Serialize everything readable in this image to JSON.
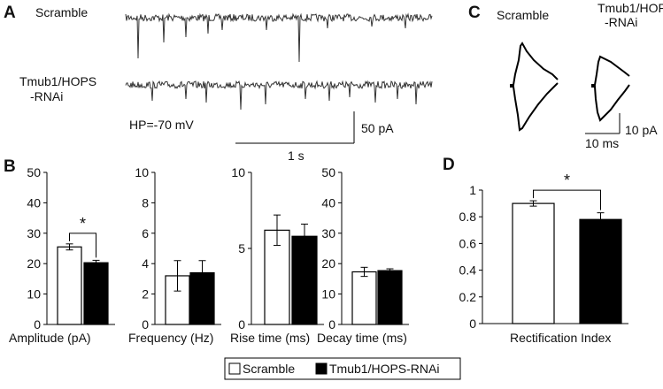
{
  "panels": {
    "A": {
      "letter": "A",
      "trace_labels": [
        "Scramble",
        "Tmub1/HOPS",
        "-RNAi"
      ],
      "holding_potential": "HP=-70 mV",
      "scale_y": "50 pA",
      "scale_x": "1 s"
    },
    "B": {
      "letter": "B"
    },
    "C": {
      "letter": "C",
      "label_scramble": "Scramble",
      "label_rnai": [
        "Tmub1/HOPS",
        "-RNAi"
      ],
      "scale_x": "10 ms",
      "scale_y": "10 pA"
    },
    "D": {
      "letter": "D"
    }
  },
  "legend": {
    "items": [
      {
        "label": "Scramble",
        "color": "#ffffff"
      },
      {
        "label": "Tmub1/HOPS-RNAi",
        "color": "#000000"
      }
    ]
  },
  "chart_data": [
    {
      "type": "bar",
      "panel": "B",
      "xlabel": "Amplitude (pA)",
      "ylim": [
        0,
        50
      ],
      "yticks": [
        "0",
        "10",
        "20",
        "30",
        "40",
        "50"
      ],
      "series": [
        {
          "name": "Scramble",
          "values": [
            25.5
          ],
          "error": [
            1.0
          ]
        },
        {
          "name": "Tmub1/HOPS-RNAi",
          "values": [
            20.3
          ],
          "error": [
            0.8
          ]
        }
      ],
      "significance": "*"
    },
    {
      "type": "bar",
      "panel": "B",
      "xlabel": "Frequency (Hz)",
      "ylim": [
        0,
        10
      ],
      "yticks": [
        "0",
        "2",
        "4",
        "6",
        "8",
        "10"
      ],
      "series": [
        {
          "name": "Scramble",
          "values": [
            3.2
          ],
          "error": [
            1.0
          ]
        },
        {
          "name": "Tmub1/HOPS-RNAi",
          "values": [
            3.4
          ],
          "error": [
            0.8
          ]
        }
      ]
    },
    {
      "type": "bar",
      "panel": "B",
      "xlabel": "Rise time (ms)",
      "ylim": [
        0,
        10
      ],
      "yticks": [
        "0",
        "5",
        "10"
      ],
      "series": [
        {
          "name": "Scramble",
          "values": [
            6.2
          ],
          "error": [
            1.0
          ]
        },
        {
          "name": "Tmub1/HOPS-RNAi",
          "values": [
            5.8
          ],
          "error": [
            0.8
          ]
        }
      ]
    },
    {
      "type": "bar",
      "panel": "B",
      "xlabel": "Decay time (ms)",
      "ylim": [
        0,
        50
      ],
      "yticks": [
        "0",
        "10",
        "20",
        "30",
        "40",
        "50"
      ],
      "series": [
        {
          "name": "Scramble",
          "values": [
            17.3
          ],
          "error": [
            1.5
          ]
        },
        {
          "name": "Tmub1/HOPS-RNAi",
          "values": [
            17.7
          ],
          "error": [
            0.6
          ]
        }
      ]
    },
    {
      "type": "bar",
      "panel": "D",
      "xlabel": "Rectification Index",
      "ylim": [
        0,
        1
      ],
      "yticks": [
        "0",
        "0.2",
        "0.4",
        "0.6",
        "0.8",
        "1"
      ],
      "series": [
        {
          "name": "Scramble",
          "values": [
            0.9
          ],
          "error": [
            0.02
          ]
        },
        {
          "name": "Tmub1/HOPS-RNAi",
          "values": [
            0.78
          ],
          "error": [
            0.05
          ]
        }
      ],
      "significance": "*"
    }
  ]
}
